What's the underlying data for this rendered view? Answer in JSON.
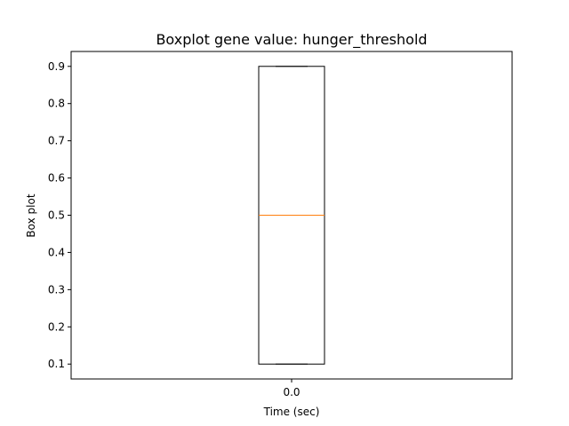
{
  "chart_data": {
    "type": "boxplot",
    "title": "Boxplot gene value: hunger_threshold",
    "xlabel": "Time (sec)",
    "ylabel": "Box plot",
    "categories": [
      "0.0"
    ],
    "boxes": [
      {
        "category": "0.0",
        "whisker_low": 0.1,
        "q1": 0.1,
        "median": 0.5,
        "q3": 0.9,
        "whisker_high": 0.9
      }
    ],
    "ylim": [
      0.06,
      0.94
    ],
    "yticks": [
      0.1,
      0.2,
      0.3,
      0.4,
      0.5,
      0.6,
      0.7,
      0.8,
      0.9
    ],
    "ytick_labels": [
      "0.1",
      "0.2",
      "0.3",
      "0.4",
      "0.5",
      "0.6",
      "0.7",
      "0.8",
      "0.9"
    ],
    "grid": false,
    "colors": {
      "box": "#000000",
      "median": "#ff7f0e",
      "axes": "#000000",
      "background": "#ffffff"
    }
  }
}
